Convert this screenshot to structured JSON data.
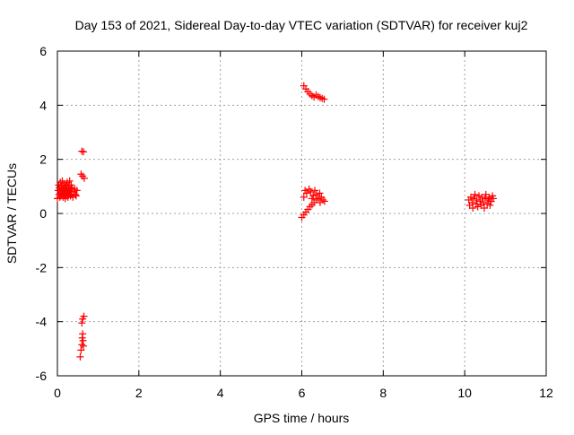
{
  "chart_data": {
    "type": "scatter",
    "title": "Day 153 of 2021, Sidereal Day-to-day VTEC variation (SDTVAR) for receiver kuj2",
    "xlabel": "GPS time / hours",
    "ylabel": "SDTVAR / TECUs",
    "xlim": [
      0,
      12
    ],
    "ylim": [
      -6,
      6
    ],
    "x_ticks": [
      0,
      2,
      4,
      6,
      8,
      10,
      12
    ],
    "y_ticks": [
      -6,
      -4,
      -2,
      0,
      2,
      4,
      6
    ],
    "x_tick_labels": [
      "0",
      "2",
      "4",
      "6",
      "8",
      "10",
      "12"
    ],
    "y_tick_labels": [
      "-6",
      "-4",
      "-2",
      "0",
      "2",
      "4",
      "6"
    ],
    "grid": true,
    "legend": "none",
    "marker": "plus",
    "color": "#ff0000",
    "series": [
      {
        "name": "SDTVAR",
        "points": [
          [
            0.0,
            0.55
          ],
          [
            0.02,
            0.85
          ],
          [
            0.03,
            1.05
          ],
          [
            0.04,
            0.7
          ],
          [
            0.05,
            0.95
          ],
          [
            0.06,
            0.6
          ],
          [
            0.07,
            1.15
          ],
          [
            0.08,
            0.8
          ],
          [
            0.09,
            0.65
          ],
          [
            0.1,
            1.0
          ],
          [
            0.11,
            0.75
          ],
          [
            0.12,
            1.2
          ],
          [
            0.13,
            0.9
          ],
          [
            0.14,
            0.6
          ],
          [
            0.15,
            0.85
          ],
          [
            0.16,
            1.1
          ],
          [
            0.17,
            0.7
          ],
          [
            0.18,
            0.95
          ],
          [
            0.19,
            0.55
          ],
          [
            0.2,
            0.8
          ],
          [
            0.21,
            1.05
          ],
          [
            0.22,
            0.65
          ],
          [
            0.23,
            0.9
          ],
          [
            0.24,
            1.15
          ],
          [
            0.25,
            0.75
          ],
          [
            0.26,
            0.6
          ],
          [
            0.27,
            1.0
          ],
          [
            0.28,
            0.85
          ],
          [
            0.29,
            0.7
          ],
          [
            0.3,
            1.2
          ],
          [
            0.31,
            0.9
          ],
          [
            0.32,
            0.65
          ],
          [
            0.33,
            0.8
          ],
          [
            0.34,
            1.05
          ],
          [
            0.35,
            0.7
          ],
          [
            0.36,
            0.95
          ],
          [
            0.38,
            0.6
          ],
          [
            0.4,
            0.8
          ],
          [
            0.42,
            0.9
          ],
          [
            0.44,
            0.7
          ],
          [
            0.46,
            0.65
          ],
          [
            0.48,
            0.85
          ],
          [
            0.6,
            2.3
          ],
          [
            0.64,
            2.28
          ],
          [
            0.58,
            1.45
          ],
          [
            0.62,
            1.38
          ],
          [
            0.66,
            1.3
          ],
          [
            0.56,
            -5.3
          ],
          [
            0.58,
            -5.05
          ],
          [
            0.6,
            -4.85
          ],
          [
            0.61,
            -4.6
          ],
          [
            0.62,
            -4.45
          ],
          [
            0.63,
            -4.7
          ],
          [
            0.64,
            -4.9
          ],
          [
            0.6,
            -4.05
          ],
          [
            0.62,
            -3.9
          ],
          [
            0.65,
            -3.8
          ],
          [
            6.05,
            4.72
          ],
          [
            6.1,
            4.6
          ],
          [
            6.15,
            4.5
          ],
          [
            6.2,
            4.42
          ],
          [
            6.25,
            4.35
          ],
          [
            6.3,
            4.3
          ],
          [
            6.35,
            4.38
          ],
          [
            6.4,
            4.32
          ],
          [
            6.45,
            4.28
          ],
          [
            6.5,
            4.25
          ],
          [
            6.55,
            4.22
          ],
          [
            6.0,
            -0.15
          ],
          [
            6.05,
            -0.05
          ],
          [
            6.1,
            0.05
          ],
          [
            6.15,
            0.15
          ],
          [
            6.2,
            0.25
          ],
          [
            6.25,
            0.32
          ],
          [
            6.3,
            0.4
          ],
          [
            6.05,
            0.6
          ],
          [
            6.08,
            0.85
          ],
          [
            6.12,
            0.75
          ],
          [
            6.18,
            0.9
          ],
          [
            6.22,
            0.8
          ],
          [
            6.28,
            0.65
          ],
          [
            6.32,
            0.85
          ],
          [
            6.36,
            0.7
          ],
          [
            6.4,
            0.55
          ],
          [
            6.44,
            0.75
          ],
          [
            6.48,
            0.6
          ],
          [
            6.52,
            0.5
          ],
          [
            6.56,
            0.45
          ],
          [
            6.35,
            0.5
          ],
          [
            6.45,
            0.4
          ],
          [
            6.25,
            0.55
          ],
          [
            10.1,
            0.5
          ],
          [
            10.12,
            0.3
          ],
          [
            10.15,
            0.6
          ],
          [
            10.18,
            0.4
          ],
          [
            10.2,
            0.2
          ],
          [
            10.22,
            0.55
          ],
          [
            10.25,
            0.7
          ],
          [
            10.28,
            0.35
          ],
          [
            10.3,
            0.5
          ],
          [
            10.32,
            0.25
          ],
          [
            10.35,
            0.65
          ],
          [
            10.38,
            0.45
          ],
          [
            10.4,
            0.3
          ],
          [
            10.42,
            0.6
          ],
          [
            10.45,
            0.4
          ],
          [
            10.48,
            0.2
          ],
          [
            10.5,
            0.55
          ],
          [
            10.52,
            0.7
          ],
          [
            10.55,
            0.35
          ],
          [
            10.58,
            0.5
          ],
          [
            10.6,
            0.6
          ],
          [
            10.62,
            0.3
          ],
          [
            10.65,
            0.45
          ],
          [
            10.68,
            0.65
          ],
          [
            10.7,
            0.55
          ]
        ]
      }
    ]
  }
}
